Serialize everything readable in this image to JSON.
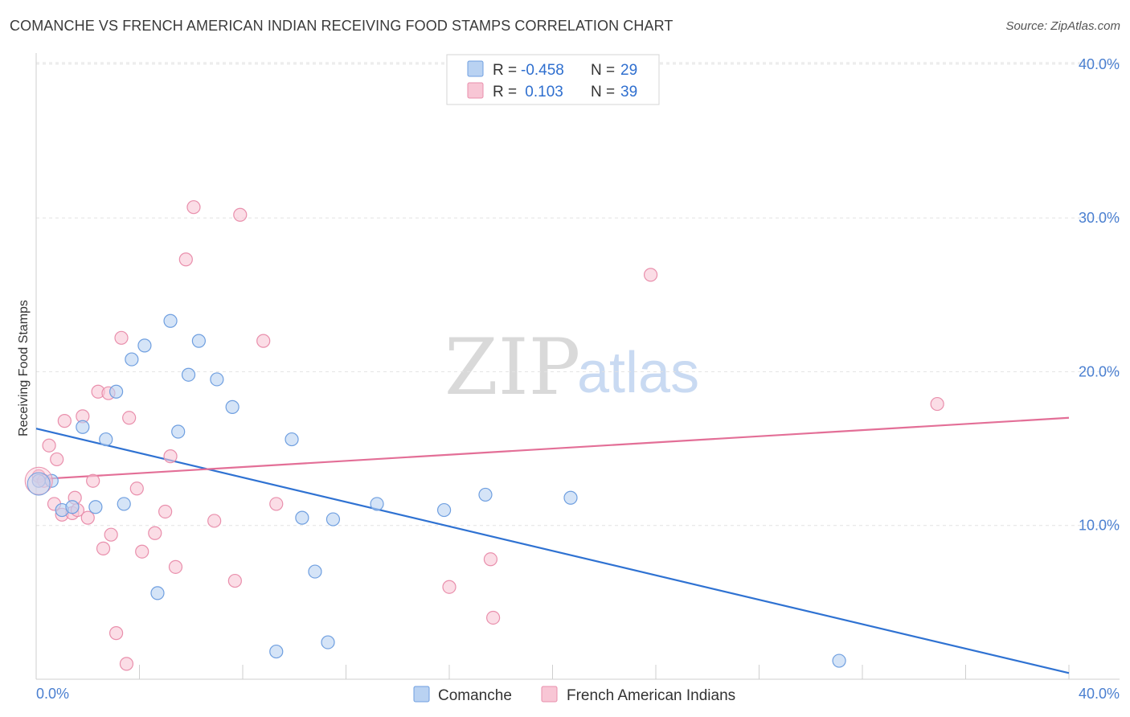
{
  "title": "COMANCHE VS FRENCH AMERICAN INDIAN RECEIVING FOOD STAMPS CORRELATION CHART",
  "source": "Source: ZipAtlas.com",
  "watermark": {
    "zip": "ZIP",
    "atlas": "atlas"
  },
  "legend": {
    "rows": [
      {
        "r_label": "R =",
        "r_value": "-0.458",
        "n_label": "N =",
        "n_value": "29"
      },
      {
        "r_label": "R =",
        "r_value": " 0.103",
        "n_label": "N =",
        "n_value": "39"
      }
    ]
  },
  "colors": {
    "blue_fill": "#b9d2f2",
    "blue_stroke": "#6f9fe0",
    "blue_line": "#2f72d2",
    "pink_fill": "#f8c6d5",
    "pink_stroke": "#e98fac",
    "pink_line": "#e36f97",
    "grid": "#e2e2e2",
    "axis_text": "#4a7fd0"
  },
  "chart_data": {
    "type": "scatter",
    "title": "COMANCHE VS FRENCH AMERICAN INDIAN RECEIVING FOOD STAMPS CORRELATION CHART",
    "xlabel": "",
    "ylabel": "Receiving Food Stamps",
    "xlim": [
      0,
      40
    ],
    "ylim": [
      0,
      40
    ],
    "x_tick_labels": [
      "0.0%",
      "40.0%"
    ],
    "y_ticks": [
      10,
      20,
      30,
      40
    ],
    "y_tick_labels": [
      "10.0%",
      "20.0%",
      "30.0%",
      "40.0%"
    ],
    "legend_position": "bottom-center",
    "series": [
      {
        "name": "Comanche",
        "color": "blue",
        "r": -0.458,
        "n": 29,
        "trend": {
          "x": [
            0,
            40
          ],
          "y": [
            16.3,
            0.4
          ]
        },
        "points": [
          [
            0.1,
            12.9
          ],
          [
            0.6,
            12.9
          ],
          [
            1.0,
            11.0
          ],
          [
            1.4,
            11.2
          ],
          [
            1.8,
            16.4
          ],
          [
            2.3,
            11.2
          ],
          [
            2.7,
            15.6
          ],
          [
            3.1,
            18.7
          ],
          [
            3.4,
            11.4
          ],
          [
            3.7,
            20.8
          ],
          [
            4.2,
            21.7
          ],
          [
            4.7,
            5.6
          ],
          [
            5.2,
            23.3
          ],
          [
            5.5,
            16.1
          ],
          [
            5.9,
            19.8
          ],
          [
            6.3,
            22.0
          ],
          [
            7.0,
            19.5
          ],
          [
            7.6,
            17.7
          ],
          [
            9.3,
            1.8
          ],
          [
            9.9,
            15.6
          ],
          [
            10.3,
            10.5
          ],
          [
            10.8,
            7.0
          ],
          [
            11.3,
            2.4
          ],
          [
            11.5,
            10.4
          ],
          [
            13.2,
            11.4
          ],
          [
            15.8,
            11.0
          ],
          [
            17.4,
            12.0
          ],
          [
            20.7,
            11.8
          ],
          [
            31.1,
            1.2
          ]
        ]
      },
      {
        "name": "French American Indians",
        "color": "pink",
        "r": 0.103,
        "n": 39,
        "trend": {
          "x": [
            0,
            40
          ],
          "y": [
            13.0,
            17.0
          ]
        },
        "points": [
          [
            0.1,
            13.2
          ],
          [
            0.3,
            12.9
          ],
          [
            0.5,
            15.2
          ],
          [
            0.7,
            11.4
          ],
          [
            0.8,
            14.3
          ],
          [
            1.0,
            10.7
          ],
          [
            1.1,
            16.8
          ],
          [
            1.4,
            10.8
          ],
          [
            1.5,
            11.8
          ],
          [
            1.6,
            11.0
          ],
          [
            1.8,
            17.1
          ],
          [
            2.0,
            10.5
          ],
          [
            2.2,
            12.9
          ],
          [
            2.4,
            18.7
          ],
          [
            2.6,
            8.5
          ],
          [
            2.8,
            18.6
          ],
          [
            2.9,
            9.4
          ],
          [
            3.1,
            3.0
          ],
          [
            3.3,
            22.2
          ],
          [
            3.5,
            1.0
          ],
          [
            3.6,
            17.0
          ],
          [
            3.9,
            12.4
          ],
          [
            4.1,
            8.3
          ],
          [
            4.6,
            9.5
          ],
          [
            5.0,
            10.9
          ],
          [
            5.2,
            14.5
          ],
          [
            5.4,
            7.3
          ],
          [
            5.8,
            27.3
          ],
          [
            6.1,
            30.7
          ],
          [
            6.9,
            10.3
          ],
          [
            7.7,
            6.4
          ],
          [
            7.9,
            30.2
          ],
          [
            8.8,
            22.0
          ],
          [
            9.3,
            11.4
          ],
          [
            16.0,
            6.0
          ],
          [
            17.6,
            7.8
          ],
          [
            17.7,
            4.0
          ],
          [
            23.8,
            26.3
          ],
          [
            34.9,
            17.9
          ]
        ]
      }
    ]
  }
}
